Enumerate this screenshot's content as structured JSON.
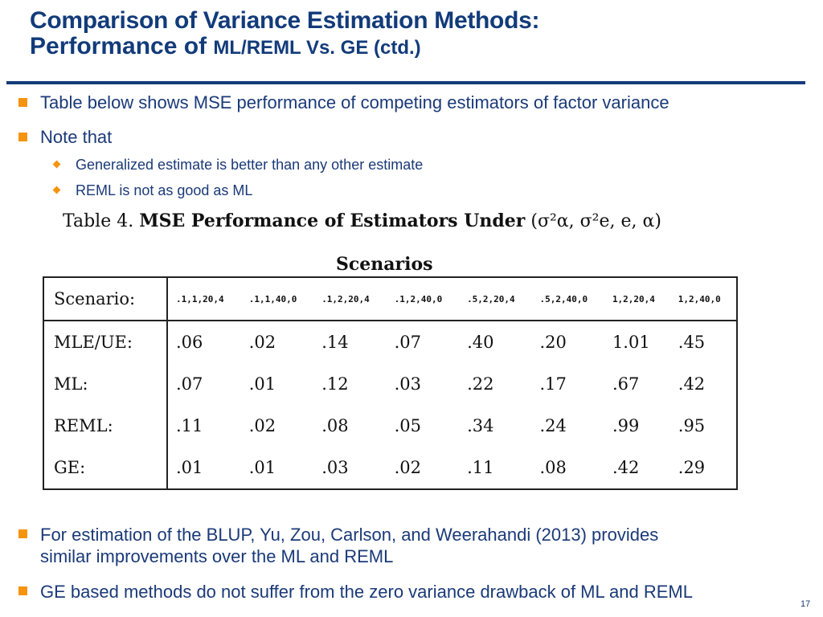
{
  "title": {
    "line1": "Comparison of Variance Estimation Methods:",
    "line2_a": "Performance of ",
    "line2_b": "ML/REML Vs. GE (ctd.)"
  },
  "bullets": [
    "Table below shows MSE performance of competing estimators of factor variance",
    "Note that"
  ],
  "sub_bullets": [
    "Generalized estimate is better than any other estimate",
    "REML is not as good as ML"
  ],
  "table": {
    "caption_a": "Table 4.",
    "caption_b": "MSE Performance of Estimators Under",
    "caption_params": "(σ²α, σ²e, e, α)",
    "group_label": "Scenarios",
    "header_label": "Scenario:",
    "scenarios": [
      ".1,1,20,4",
      ".1,1,40,0",
      ".1,2,20,4",
      ".1,2,40,0",
      ".5,2,20,4",
      ".5,2,40,0",
      "1,2,20,4",
      "1,2,40,0"
    ],
    "rows": [
      {
        "label": "MLE/UE:",
        "values": [
          ".06",
          ".02",
          ".14",
          ".07",
          ".40",
          ".20",
          "1.01",
          ".45"
        ]
      },
      {
        "label": "ML:",
        "values": [
          ".07",
          ".01",
          ".12",
          ".03",
          ".22",
          ".17",
          ".67",
          ".42"
        ]
      },
      {
        "label": "REML:",
        "values": [
          ".11",
          ".02",
          ".08",
          ".05",
          ".34",
          ".24",
          ".99",
          ".95"
        ]
      },
      {
        "label": "GE:",
        "values": [
          ".01",
          ".01",
          ".03",
          ".02",
          ".11",
          ".08",
          ".42",
          ".29"
        ]
      }
    ]
  },
  "bottom_bullets": [
    "For estimation of the BLUP, Yu, Zou, Carlson, and Weerahandi (2013) provides",
    "similar improvements over the ML and REML",
    "GE based methods do not suffer from the zero variance drawback of ML and REML"
  ],
  "page_number": "17",
  "colors": {
    "title": "#123b7a",
    "text": "#1a3a78",
    "accent": "#f6930f"
  }
}
